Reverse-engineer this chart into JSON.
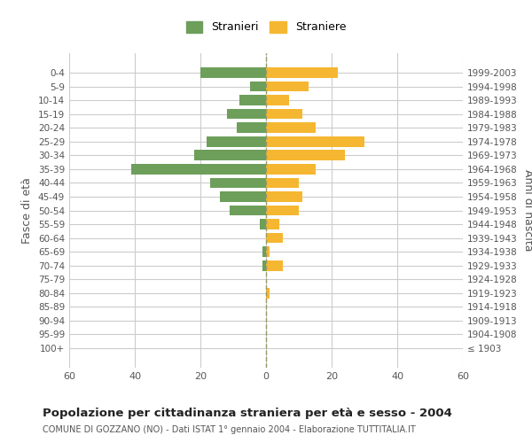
{
  "age_groups": [
    "100+",
    "95-99",
    "90-94",
    "85-89",
    "80-84",
    "75-79",
    "70-74",
    "65-69",
    "60-64",
    "55-59",
    "50-54",
    "45-49",
    "40-44",
    "35-39",
    "30-34",
    "25-29",
    "20-24",
    "15-19",
    "10-14",
    "5-9",
    "0-4"
  ],
  "birth_years": [
    "≤ 1903",
    "1904-1908",
    "1909-1913",
    "1914-1918",
    "1919-1923",
    "1924-1928",
    "1929-1933",
    "1934-1938",
    "1939-1943",
    "1944-1948",
    "1949-1953",
    "1954-1958",
    "1959-1963",
    "1964-1968",
    "1969-1973",
    "1974-1978",
    "1979-1983",
    "1984-1988",
    "1989-1993",
    "1994-1998",
    "1999-2003"
  ],
  "males": [
    0,
    0,
    0,
    0,
    0,
    0,
    1,
    1,
    0,
    2,
    11,
    14,
    17,
    41,
    22,
    18,
    9,
    12,
    8,
    5,
    20
  ],
  "females": [
    0,
    0,
    0,
    0,
    1,
    0,
    5,
    1,
    5,
    4,
    10,
    11,
    10,
    15,
    24,
    30,
    15,
    11,
    7,
    13,
    22
  ],
  "male_color": "#6d9f5b",
  "female_color": "#f5b731",
  "grid_color": "#cccccc",
  "center_line_color_dark": "#999966",
  "center_line_color_light": "#cccc99",
  "title": "Popolazione per cittadinanza straniera per età e sesso - 2004",
  "subtitle": "COMUNE DI GOZZANO (NO) - Dati ISTAT 1° gennaio 2004 - Elaborazione TUTTITALIA.IT",
  "ylabel_left": "Fasce di età",
  "ylabel_right": "Anni di nascita",
  "legend_males": "Stranieri",
  "legend_females": "Straniere",
  "xlim": 60,
  "background_color": "#ffffff"
}
